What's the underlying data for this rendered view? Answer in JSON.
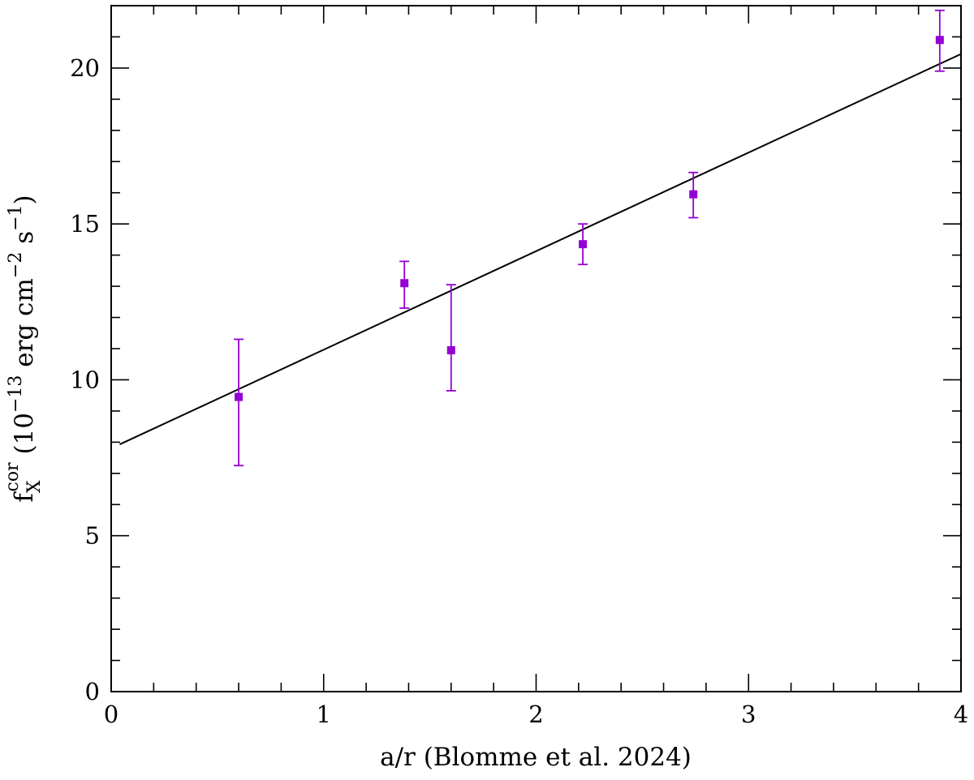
{
  "chart_data": {
    "type": "scatter",
    "title": "",
    "xlabel": "a/r (Blomme et al. 2024)",
    "ylabel": {
      "f": "f",
      "sub": "X",
      "sup": "cor",
      "open": " (10",
      "exp1": "−13",
      "mid": " erg cm",
      "exp2": "−2",
      "mid2": " s",
      "exp3": "−1",
      "close": ")"
    },
    "xlim": [
      0,
      4
    ],
    "ylim": [
      0,
      22
    ],
    "x_major_ticks": [
      0,
      1,
      2,
      3,
      4
    ],
    "x_tick_labels": [
      "0",
      "1",
      "2",
      "3",
      "4"
    ],
    "x_minor_step": 0.2,
    "y_major_ticks": [
      0,
      5,
      10,
      15,
      20
    ],
    "y_tick_labels": [
      "0",
      "5",
      "10",
      "15",
      "20"
    ],
    "y_minor_step": 1,
    "grid": false,
    "series": [
      {
        "kind": "points_with_errorbars",
        "color": "#9400d3",
        "marker": "square",
        "points": [
          {
            "x": 0.6,
            "y": 9.45,
            "ylow": 7.25,
            "yhigh": 11.3
          },
          {
            "x": 1.38,
            "y": 13.1,
            "ylow": 12.3,
            "yhigh": 13.8
          },
          {
            "x": 1.6,
            "y": 10.95,
            "ylow": 9.65,
            "yhigh": 13.05
          },
          {
            "x": 2.22,
            "y": 14.35,
            "ylow": 13.7,
            "yhigh": 15.0
          },
          {
            "x": 2.74,
            "y": 15.95,
            "ylow": 15.2,
            "yhigh": 16.65
          },
          {
            "x": 3.9,
            "y": 20.9,
            "ylow": 19.9,
            "yhigh": 21.85
          }
        ]
      },
      {
        "kind": "fit_line",
        "color": "#000000",
        "x": [
          0.04,
          4.0
        ],
        "y": [
          7.93,
          20.45
        ]
      }
    ]
  }
}
